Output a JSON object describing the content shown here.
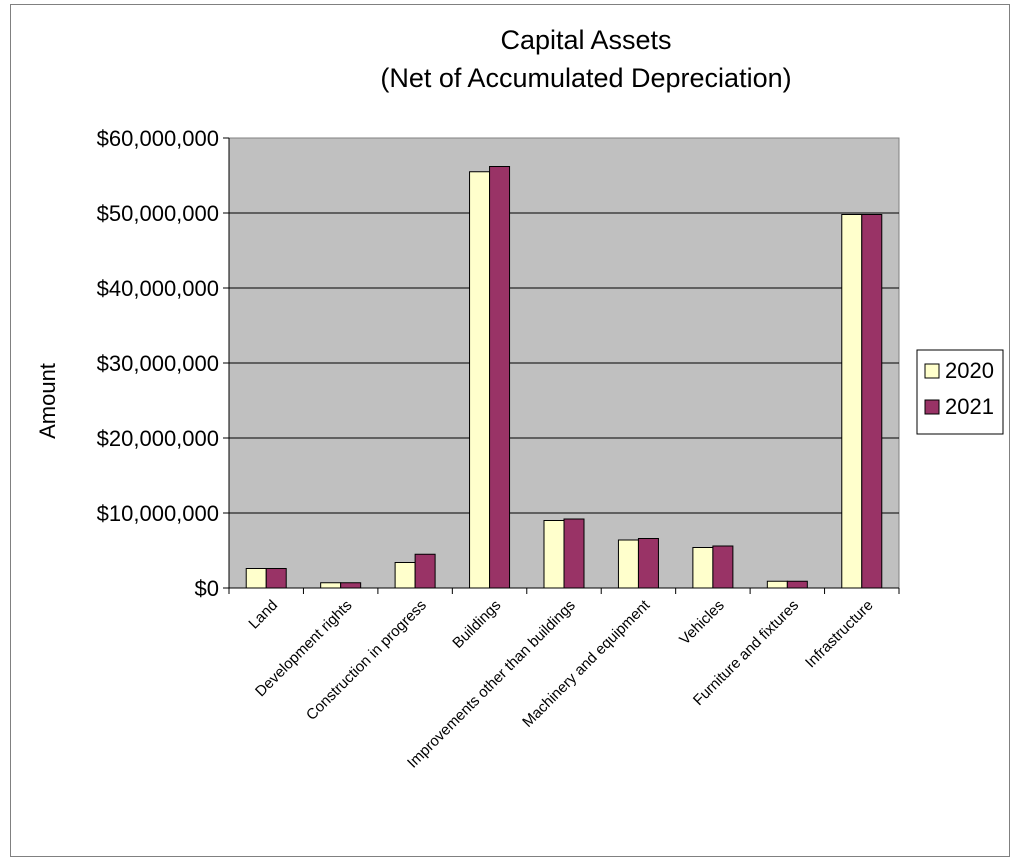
{
  "chart_data": {
    "type": "bar",
    "title": "Capital Assets",
    "subtitle": "(Net of Accumulated Depreciation)",
    "xlabel": "",
    "ylabel": "Amount",
    "ylim": [
      0,
      60000000
    ],
    "yticks": [
      0,
      10000000,
      20000000,
      30000000,
      40000000,
      50000000,
      60000000
    ],
    "ytick_labels": [
      "$0",
      "$10,000,000",
      "$20,000,000",
      "$30,000,000",
      "$40,000,000",
      "$50,000,000",
      "$60,000,000"
    ],
    "categories": [
      "Land",
      "Development rights",
      "Construction in progress",
      "Buildings",
      "Improvements other than buildings",
      "Machinery and equipment",
      "Vehicles",
      "Furniture and fixtures",
      "Infrastructure"
    ],
    "series": [
      {
        "name": "2020",
        "color": "#FFFFCC",
        "values": [
          2600000,
          700000,
          3400000,
          55500000,
          9000000,
          6400000,
          5400000,
          900000,
          49800000
        ]
      },
      {
        "name": "2021",
        "color": "#993366",
        "values": [
          2600000,
          700000,
          4500000,
          56200000,
          9200000,
          6600000,
          5600000,
          900000,
          49800000
        ]
      }
    ],
    "grid": true,
    "plot_background": "#C0C0C0",
    "legend_position": "right"
  }
}
